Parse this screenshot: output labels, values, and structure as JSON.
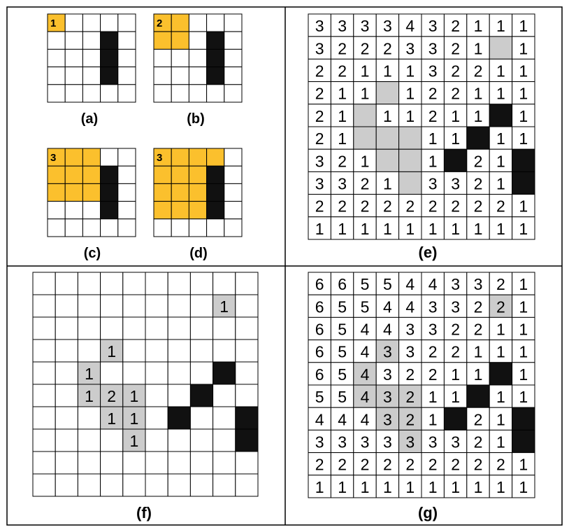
{
  "colors": {
    "orange": "#fbc02d",
    "gray": "#cccccc",
    "black": "#111111",
    "white": "#ffffff",
    "line": "#000000"
  },
  "panels": {
    "a": {
      "caption": "(a)",
      "rows": 5,
      "cols": 5,
      "grid": [
        "O....",
        "...B.",
        "...B.",
        "...B.",
        "....."
      ],
      "labels": [
        [
          "1",
          null,
          null,
          null,
          null
        ]
      ]
    },
    "b": {
      "caption": "(b)",
      "rows": 5,
      "cols": 5,
      "grid": [
        "OO...",
        "OO.B.",
        "...B.",
        "...B.",
        "....."
      ],
      "labels": [
        [
          "2",
          null,
          null,
          null,
          null
        ]
      ]
    },
    "c": {
      "caption": "(c)",
      "rows": 5,
      "cols": 5,
      "grid": [
        "OOO..",
        "OOOB.",
        "OOOB.",
        "...B.",
        "....."
      ],
      "labels": [
        [
          "3",
          null,
          null,
          null,
          null
        ]
      ]
    },
    "d": {
      "caption": "(d)",
      "rows": 5,
      "cols": 5,
      "grid": [
        "OOOO.",
        "OOOB.",
        "OOOB.",
        "OOOB.",
        "....."
      ],
      "labels": [
        [
          "3",
          null,
          null,
          null,
          null
        ]
      ]
    },
    "e": {
      "caption": "(e)",
      "rows": 10,
      "cols": 10,
      "grid": [
        "..........",
        "........G.",
        "..........",
        "...G......",
        "..G.....B.",
        "..GGG..B..",
        "...GG.B..B",
        "....G....B",
        "..........",
        ".........."
      ],
      "labels": [
        [
          "3",
          "3",
          "3",
          "3",
          "4",
          "3",
          "2",
          "1",
          "1",
          "1"
        ],
        [
          "3",
          "2",
          "2",
          "2",
          "3",
          "3",
          "2",
          "1",
          null,
          "1"
        ],
        [
          "2",
          "2",
          "1",
          "1",
          "1",
          "3",
          "2",
          "2",
          "1",
          "1"
        ],
        [
          "2",
          "1",
          "1",
          null,
          "1",
          "2",
          "2",
          "1",
          "1",
          "1"
        ],
        [
          "2",
          "1",
          null,
          "1",
          "1",
          "2",
          "1",
          "1",
          null,
          "1"
        ],
        [
          "2",
          "1",
          null,
          null,
          null,
          "1",
          "1",
          null,
          "1",
          "1"
        ],
        [
          "3",
          "2",
          "1",
          null,
          null,
          "1",
          null,
          "2",
          "1",
          null
        ],
        [
          "3",
          "3",
          "2",
          "1",
          null,
          "3",
          "3",
          "2",
          "1",
          null
        ],
        [
          "2",
          "2",
          "2",
          "2",
          "2",
          "2",
          "2",
          "2",
          "2",
          "1"
        ],
        [
          "1",
          "1",
          "1",
          "1",
          "1",
          "1",
          "1",
          "1",
          "1",
          "1"
        ]
      ]
    },
    "f": {
      "caption": "(f)",
      "rows": 10,
      "cols": 10,
      "grid": [
        "..........",
        "........G.",
        "..........",
        "...G......",
        "..G.....B.",
        "..GGG..B..",
        "...GG.B..B",
        "....G....B",
        "..........",
        ".........."
      ],
      "labels": [
        [
          null,
          null,
          null,
          null,
          null,
          null,
          null,
          null,
          null,
          null
        ],
        [
          null,
          null,
          null,
          null,
          null,
          null,
          null,
          null,
          "1",
          null
        ],
        [
          null,
          null,
          null,
          null,
          null,
          null,
          null,
          null,
          null,
          null
        ],
        [
          null,
          null,
          null,
          "1",
          null,
          null,
          null,
          null,
          null,
          null
        ],
        [
          null,
          null,
          "1",
          null,
          null,
          null,
          null,
          null,
          null,
          null
        ],
        [
          null,
          null,
          "1",
          "2",
          "1",
          null,
          null,
          null,
          null,
          null
        ],
        [
          null,
          null,
          null,
          "1",
          "1",
          null,
          null,
          null,
          null,
          null
        ],
        [
          null,
          null,
          null,
          null,
          "1",
          null,
          null,
          null,
          null,
          null
        ],
        [
          null,
          null,
          null,
          null,
          null,
          null,
          null,
          null,
          null,
          null
        ],
        [
          null,
          null,
          null,
          null,
          null,
          null,
          null,
          null,
          null,
          null
        ]
      ]
    },
    "g": {
      "caption": "(g)",
      "rows": 10,
      "cols": 10,
      "grid": [
        "..........",
        "........G.",
        "..........",
        "...G......",
        "..G.....B.",
        "..GGG..B..",
        "...GG.B..B",
        "....G....B",
        "..........",
        ".........."
      ],
      "labels": [
        [
          "6",
          "6",
          "5",
          "5",
          "4",
          "4",
          "3",
          "3",
          "2",
          "1"
        ],
        [
          "6",
          "5",
          "5",
          "4",
          "4",
          "3",
          "3",
          "2",
          "2",
          "1"
        ],
        [
          "6",
          "5",
          "4",
          "4",
          "3",
          "3",
          "2",
          "2",
          "1",
          "1"
        ],
        [
          "6",
          "5",
          "4",
          "3",
          "3",
          "2",
          "2",
          "1",
          "1",
          "1"
        ],
        [
          "6",
          "5",
          "4",
          "3",
          "2",
          "2",
          "1",
          "1",
          null,
          "1"
        ],
        [
          "5",
          "5",
          "4",
          "3",
          "2",
          "1",
          "1",
          null,
          "1",
          "1"
        ],
        [
          "4",
          "4",
          "4",
          "3",
          "2",
          "1",
          null,
          "2",
          "1",
          null
        ],
        [
          "3",
          "3",
          "3",
          "3",
          "3",
          "3",
          "3",
          "2",
          "1",
          null
        ],
        [
          "2",
          "2",
          "2",
          "2",
          "2",
          "2",
          "2",
          "2",
          "2",
          "1"
        ],
        [
          "1",
          "1",
          "1",
          "1",
          "1",
          "1",
          "1",
          "1",
          "1",
          "1"
        ]
      ]
    }
  }
}
